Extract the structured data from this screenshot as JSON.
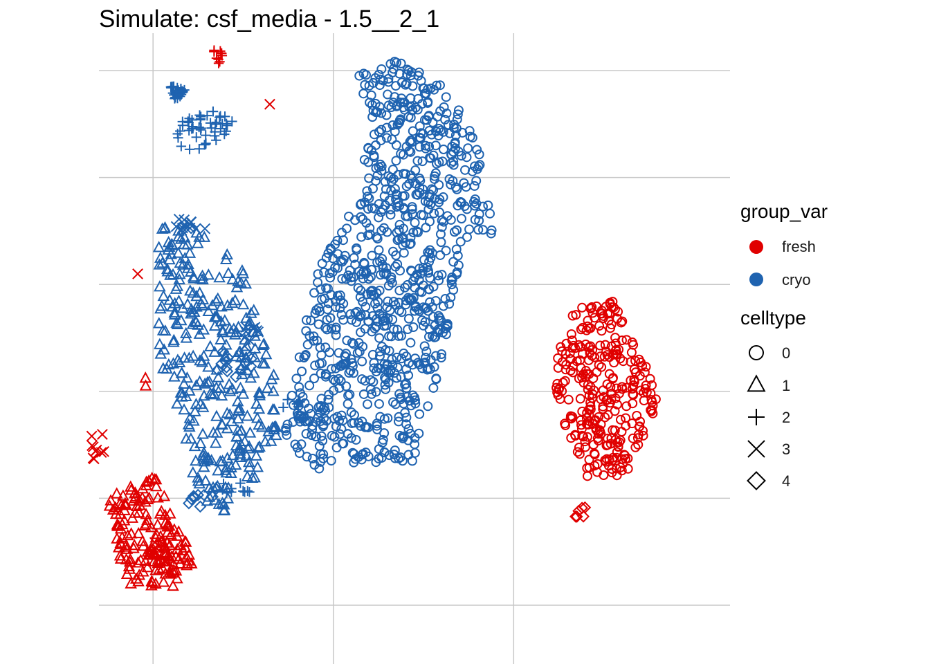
{
  "chart_data": {
    "type": "scatter",
    "title": "Simulate: csf_media - 1.5__2_1",
    "xlabel": "",
    "ylabel": "",
    "grid": true,
    "axis_ticks_shown": false,
    "legend_position": "right",
    "legends": [
      {
        "title": "group_var",
        "aesthetic": "color",
        "entries": [
          {
            "label": "fresh",
            "color": "#e00000"
          },
          {
            "label": "cryo",
            "color": "#1f63b0"
          }
        ]
      },
      {
        "title": "celltype",
        "aesthetic": "shape",
        "entries": [
          {
            "label": "0",
            "shape": "circle"
          },
          {
            "label": "1",
            "shape": "triangle"
          },
          {
            "label": "2",
            "shape": "plus"
          },
          {
            "label": "3",
            "shape": "cross"
          },
          {
            "label": "4",
            "shape": "diamond"
          }
        ]
      }
    ],
    "xlim": [
      -1.3,
      2.2
    ],
    "ylim": [
      -3.05,
      2.85
    ],
    "x_gridlines": [
      -1,
      0,
      1
    ],
    "y_gridlines": [
      -2.5,
      -1.5,
      -0.5,
      0.5,
      1.5,
      2.5
    ],
    "clusters": [
      {
        "group": "cryo",
        "celltype": "0",
        "n": 900,
        "poly": [
          [
            0.8,
            1.8
          ],
          [
            0.68,
            2.2
          ],
          [
            0.52,
            2.5
          ],
          [
            0.32,
            2.6
          ],
          [
            0.12,
            2.47
          ],
          [
            0.22,
            2.0
          ],
          [
            0.1,
            1.2
          ],
          [
            -0.1,
            0.6
          ],
          [
            -0.2,
            -0.2
          ],
          [
            -0.28,
            -0.9
          ],
          [
            -0.1,
            -1.25
          ],
          [
            0.2,
            -1.2
          ],
          [
            0.45,
            -1.15
          ],
          [
            0.6,
            -0.2
          ],
          [
            0.7,
            0.7
          ],
          [
            0.85,
            1.0
          ],
          [
            0.92,
            0.8
          ]
        ]
      },
      {
        "group": "cryo",
        "celltype": "1",
        "n": 320,
        "poly": [
          [
            -0.95,
            1.1
          ],
          [
            -0.7,
            0.95
          ],
          [
            -0.5,
            0.65
          ],
          [
            -0.42,
            0.2
          ],
          [
            -0.35,
            -0.1
          ],
          [
            -0.3,
            -0.5
          ],
          [
            -0.3,
            -1.0
          ],
          [
            -0.6,
            -1.7
          ],
          [
            -0.75,
            -1.5
          ],
          [
            -0.85,
            -0.7
          ],
          [
            -0.98,
            -0.2
          ],
          [
            -1.0,
            0.6
          ]
        ]
      },
      {
        "group": "cryo",
        "celltype": "2",
        "n": 28,
        "poly": [
          [
            -0.92,
            2.37
          ],
          [
            -0.82,
            2.32
          ],
          [
            -0.87,
            2.2
          ]
        ]
      },
      {
        "group": "cryo",
        "celltype": "2",
        "n": 48,
        "poly": [
          [
            -0.85,
            2.05
          ],
          [
            -0.6,
            2.15
          ],
          [
            -0.55,
            2.05
          ],
          [
            -0.62,
            1.82
          ],
          [
            -0.8,
            1.7
          ],
          [
            -0.88,
            1.85
          ]
        ]
      },
      {
        "group": "cryo",
        "celltype": "2",
        "n": 10,
        "poly": [
          [
            -0.62,
            -1.35
          ],
          [
            -0.45,
            -1.35
          ],
          [
            -0.45,
            -1.45
          ],
          [
            -0.62,
            -1.45
          ]
        ]
      },
      {
        "group": "cryo",
        "celltype": "2",
        "n": 8,
        "poly": [
          [
            -0.28,
            -0.55
          ],
          [
            -0.18,
            -0.55
          ],
          [
            -0.18,
            -0.65
          ],
          [
            -0.28,
            -0.65
          ]
        ]
      },
      {
        "group": "cryo",
        "celltype": "3",
        "n": 14,
        "poly": [
          [
            -0.85,
            1.15
          ],
          [
            -0.7,
            1.05
          ],
          [
            -0.72,
            0.95
          ],
          [
            -0.88,
            1.0
          ]
        ]
      },
      {
        "group": "cryo",
        "celltype": "3",
        "n": 8,
        "poly": [
          [
            -0.5,
            0.1
          ],
          [
            -0.38,
            0.1
          ],
          [
            -0.38,
            -0.05
          ],
          [
            -0.5,
            -0.05
          ]
        ]
      },
      {
        "group": "cryo",
        "celltype": "4",
        "n": 14,
        "poly": [
          [
            -0.6,
            -0.05
          ],
          [
            -0.38,
            -0.2
          ],
          [
            -0.5,
            -0.4
          ],
          [
            -0.65,
            -0.3
          ]
        ]
      },
      {
        "group": "cryo",
        "celltype": "4",
        "n": 10,
        "poly": [
          [
            -0.7,
            -1.4
          ],
          [
            -0.6,
            -1.4
          ],
          [
            -0.75,
            -1.6
          ],
          [
            -0.85,
            -1.55
          ]
        ]
      },
      {
        "group": "fresh",
        "celltype": "0",
        "n": 300,
        "poly": [
          [
            1.35,
            0.3
          ],
          [
            1.55,
            0.35
          ],
          [
            1.65,
            0.05
          ],
          [
            1.75,
            -0.3
          ],
          [
            1.8,
            -0.6
          ],
          [
            1.7,
            -1.0
          ],
          [
            1.6,
            -1.35
          ],
          [
            1.4,
            -1.3
          ],
          [
            1.3,
            -0.9
          ],
          [
            1.22,
            -0.5
          ],
          [
            1.25,
            -0.1
          ]
        ]
      },
      {
        "group": "fresh",
        "celltype": "4",
        "n": 6,
        "poly": [
          [
            1.35,
            -1.6
          ],
          [
            1.4,
            -1.55
          ],
          [
            1.38,
            -1.75
          ],
          [
            1.33,
            -1.78
          ]
        ]
      },
      {
        "group": "fresh",
        "celltype": "1",
        "n": 160,
        "poly": [
          [
            -1.15,
            -1.4
          ],
          [
            -1.0,
            -1.25
          ],
          [
            -0.9,
            -1.6
          ],
          [
            -0.82,
            -1.85
          ],
          [
            -0.78,
            -2.15
          ],
          [
            -0.9,
            -2.35
          ],
          [
            -1.15,
            -2.3
          ],
          [
            -1.2,
            -1.9
          ],
          [
            -1.28,
            -1.5
          ]
        ]
      },
      {
        "group": "fresh",
        "celltype": "3",
        "n": 10,
        "poly": [
          [
            -1.38,
            -0.9
          ],
          [
            -1.28,
            -0.9
          ],
          [
            -1.26,
            -1.2
          ],
          [
            -1.36,
            -1.15
          ]
        ]
      },
      {
        "group": "fresh",
        "celltype": "3",
        "n": 8,
        "poly": [
          [
            -1.0,
            -1.9
          ],
          [
            -0.9,
            -1.95
          ],
          [
            -0.92,
            -2.1
          ],
          [
            -1.02,
            -2.05
          ]
        ]
      },
      {
        "group": "fresh",
        "celltype": "1",
        "n": 2,
        "poly": [
          [
            -1.08,
            -0.35
          ],
          [
            -1.02,
            -0.35
          ],
          [
            -1.02,
            -0.5
          ],
          [
            -1.08,
            -0.5
          ]
        ]
      },
      {
        "group": "fresh",
        "celltype": "3",
        "n": 1,
        "poly": [
          [
            -1.09,
            0.6
          ],
          [
            -1.07,
            0.6
          ],
          [
            -1.07,
            0.58
          ],
          [
            -1.09,
            0.58
          ]
        ]
      },
      {
        "group": "fresh",
        "celltype": "3",
        "n": 1,
        "poly": [
          [
            -0.37,
            2.2
          ],
          [
            -0.35,
            2.2
          ],
          [
            -0.35,
            2.18
          ],
          [
            -0.37,
            2.18
          ]
        ]
      },
      {
        "group": "fresh",
        "celltype": "2",
        "n": 10,
        "poly": [
          [
            -0.67,
            2.72
          ],
          [
            -0.62,
            2.7
          ],
          [
            -0.58,
            2.5
          ],
          [
            -0.63,
            2.5
          ]
        ]
      }
    ]
  }
}
